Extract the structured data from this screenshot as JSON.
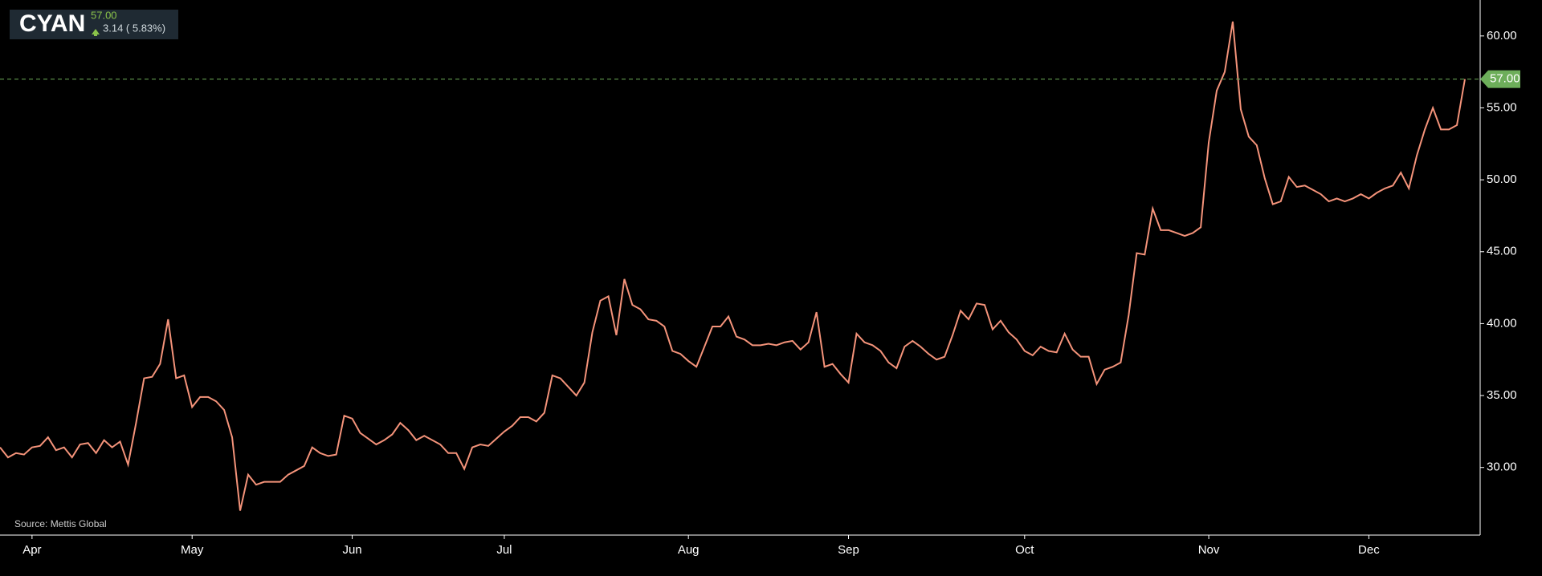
{
  "header": {
    "ticker": "CYAN",
    "price": "57.00",
    "change": "3.14 ( 5.83%)"
  },
  "chart_data": {
    "type": "line",
    "source": "Source: Mettis Global",
    "last_label": "57.00",
    "categories": [
      null,
      null,
      null,
      null,
      "Apr",
      null,
      null,
      null,
      null,
      null,
      null,
      null,
      null,
      null,
      null,
      null,
      null,
      null,
      null,
      null,
      null,
      null,
      null,
      null,
      "May",
      null,
      null,
      null,
      null,
      null,
      null,
      null,
      null,
      null,
      null,
      null,
      null,
      null,
      null,
      null,
      null,
      null,
      null,
      null,
      "Jun",
      null,
      null,
      null,
      null,
      null,
      null,
      null,
      null,
      null,
      null,
      null,
      null,
      null,
      null,
      null,
      null,
      null,
      null,
      "Jul",
      null,
      null,
      null,
      null,
      null,
      null,
      null,
      null,
      null,
      null,
      null,
      null,
      null,
      null,
      null,
      null,
      null,
      null,
      null,
      null,
      null,
      null,
      "Aug",
      null,
      null,
      null,
      null,
      null,
      null,
      null,
      null,
      null,
      null,
      null,
      null,
      null,
      null,
      null,
      null,
      null,
      null,
      null,
      "Sep",
      null,
      null,
      null,
      null,
      null,
      null,
      null,
      null,
      null,
      null,
      null,
      null,
      null,
      null,
      null,
      null,
      null,
      null,
      null,
      null,
      null,
      "Oct",
      null,
      null,
      null,
      null,
      null,
      null,
      null,
      null,
      null,
      null,
      null,
      null,
      null,
      null,
      null,
      null,
      null,
      null,
      null,
      null,
      null,
      null,
      "Nov",
      null,
      null,
      null,
      null,
      null,
      null,
      null,
      null,
      null,
      null,
      null,
      null,
      null,
      null,
      null,
      null,
      null,
      null,
      null,
      "Dec",
      null,
      null,
      null,
      null,
      null,
      null,
      null,
      null,
      null,
      null,
      null,
      null
    ],
    "series": [
      {
        "name": "CYAN",
        "color": "#f4937a",
        "values": [
          31.4,
          30.7,
          31.0,
          30.9,
          31.4,
          31.5,
          32.1,
          31.2,
          31.4,
          30.7,
          31.6,
          31.7,
          31.0,
          31.9,
          31.4,
          31.8,
          30.2,
          33.1,
          36.2,
          36.3,
          37.2,
          40.3,
          36.2,
          36.4,
          34.2,
          34.9,
          34.9,
          34.6,
          34.0,
          32.1,
          27.0,
          29.5,
          28.8,
          29.0,
          29.0,
          29.0,
          29.5,
          29.8,
          30.1,
          31.4,
          31.0,
          30.8,
          30.9,
          33.6,
          33.4,
          32.4,
          32.0,
          31.6,
          31.9,
          32.3,
          33.1,
          32.6,
          31.9,
          32.2,
          31.9,
          31.6,
          31.0,
          31.0,
          29.9,
          31.4,
          31.6,
          31.5,
          32.0,
          32.5,
          32.9,
          33.5,
          33.5,
          33.2,
          33.8,
          36.4,
          36.2,
          35.6,
          35.0,
          35.9,
          39.4,
          41.6,
          41.9,
          39.2,
          43.1,
          41.3,
          41.0,
          40.3,
          40.2,
          39.8,
          38.1,
          37.9,
          37.4,
          37.0,
          38.4,
          39.8,
          39.8,
          40.5,
          39.1,
          38.9,
          38.5,
          38.5,
          38.6,
          38.5,
          38.7,
          38.8,
          38.2,
          38.7,
          40.8,
          37.0,
          37.2,
          36.5,
          35.9,
          39.3,
          38.7,
          38.5,
          38.1,
          37.3,
          36.9,
          38.4,
          38.8,
          38.4,
          37.9,
          37.5,
          37.7,
          39.2,
          40.9,
          40.3,
          41.4,
          41.3,
          39.6,
          40.2,
          39.4,
          38.9,
          38.1,
          37.8,
          38.4,
          38.1,
          38.0,
          39.3,
          38.2,
          37.7,
          37.7,
          35.8,
          36.8,
          37.0,
          37.3,
          40.6,
          44.9,
          44.8,
          48.0,
          46.5,
          46.5,
          46.3,
          46.1,
          46.3,
          46.7,
          52.6,
          56.2,
          57.5,
          61.0,
          54.9,
          53.0,
          52.4,
          50.1,
          48.3,
          48.5,
          50.2,
          49.5,
          49.6,
          49.3,
          49.0,
          48.5,
          48.7,
          48.5,
          48.7,
          49.0,
          48.7,
          49.1,
          49.4,
          49.6,
          50.5,
          49.4,
          51.7,
          53.5,
          55.0,
          53.5,
          53.5,
          53.8,
          57.0
        ]
      }
    ],
    "ylim": [
      25.3,
      62.5
    ],
    "yticks": [
      {
        "value": 30,
        "label": "30.00"
      },
      {
        "value": 35,
        "label": "35.00"
      },
      {
        "value": 40,
        "label": "40.00"
      },
      {
        "value": 45,
        "label": "45.00"
      },
      {
        "value": 50,
        "label": "50.00"
      },
      {
        "value": 55,
        "label": "55.00"
      },
      {
        "value": 60,
        "label": "60.00"
      }
    ],
    "grid": false
  }
}
